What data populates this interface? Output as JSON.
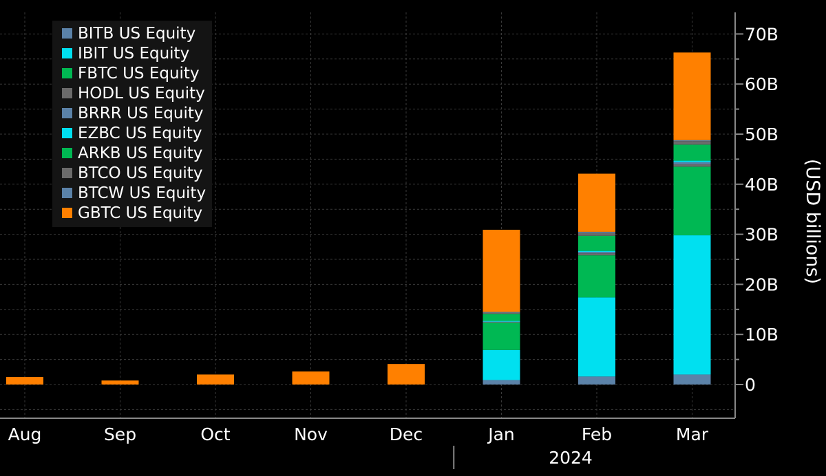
{
  "chart_data": {
    "type": "bar",
    "stacked": true,
    "categories": [
      "Aug",
      "Sep",
      "Oct",
      "Nov",
      "Dec",
      "Jan",
      "Feb",
      "Mar"
    ],
    "year_label": "2024",
    "ylabel": "(USD billions)",
    "y_tick_labels": [
      "0",
      "10B",
      "20B",
      "30B",
      "40B",
      "50B",
      "60B",
      "70B"
    ],
    "y_ticks": [
      0,
      10,
      20,
      30,
      40,
      50,
      60,
      70
    ],
    "ylim": [
      -6,
      75
    ],
    "grid": true,
    "legend_position": "top-left",
    "series": [
      {
        "name": "BITB US Equity",
        "color": "#5b82a8",
        "values": [
          0,
          0,
          0,
          0,
          0,
          0.9,
          1.6,
          2.0
        ]
      },
      {
        "name": "IBIT US Equity",
        "color": "#00e0f0",
        "values": [
          0,
          0,
          0,
          0,
          0,
          6.0,
          15.8,
          27.8
        ]
      },
      {
        "name": "FBTC US Equity",
        "color": "#00b853",
        "values": [
          0,
          0,
          0,
          0,
          0,
          5.5,
          8.4,
          13.7
        ]
      },
      {
        "name": "HODL US Equity",
        "color": "#6b6b6b",
        "values": [
          0,
          0,
          0,
          0,
          0,
          0.1,
          0.4,
          0.5
        ]
      },
      {
        "name": "BRRR US Equity",
        "color": "#5b82a8",
        "values": [
          0,
          0,
          0,
          0,
          0,
          0.1,
          0.3,
          0.4
        ]
      },
      {
        "name": "EZBC US Equity",
        "color": "#00e0f0",
        "values": [
          0,
          0,
          0,
          0,
          0,
          0.1,
          0.2,
          0.3
        ]
      },
      {
        "name": "ARKB US Equity",
        "color": "#00b853",
        "values": [
          0,
          0,
          0,
          0,
          0,
          1.4,
          3.0,
          3.2
        ]
      },
      {
        "name": "BTCO US Equity",
        "color": "#6b6b6b",
        "values": [
          0,
          0,
          0,
          0,
          0,
          0.3,
          0.6,
          0.7
        ]
      },
      {
        "name": "BTCW US Equity",
        "color": "#5b82a8",
        "values": [
          0,
          0,
          0,
          0,
          0,
          0.1,
          0.2,
          0.2
        ]
      },
      {
        "name": "GBTC US Equity",
        "color": "#ff8000",
        "values": [
          1.5,
          0.8,
          2.0,
          2.6,
          4.1,
          16.4,
          11.6,
          17.5
        ]
      }
    ]
  }
}
